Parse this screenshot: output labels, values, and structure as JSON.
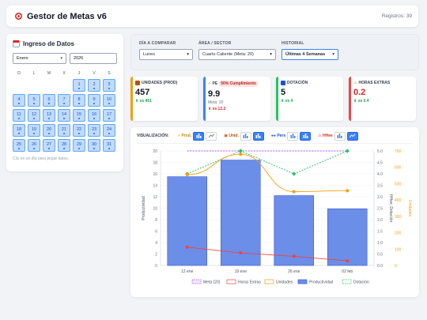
{
  "header": {
    "title": "Gestor de Metas v6",
    "registros": "Registros: 39"
  },
  "left": {
    "title": "Ingreso de Datos",
    "month": "Enero",
    "year": "2026",
    "dow": [
      "D",
      "L",
      "M",
      "X",
      "J",
      "V",
      "S"
    ],
    "leading_blanks": 4,
    "days": [
      1,
      2,
      3,
      4,
      5,
      6,
      7,
      8,
      9,
      10,
      11,
      12,
      13,
      14,
      15,
      16,
      17,
      18,
      19,
      20,
      21,
      22,
      23,
      24,
      25,
      26,
      27,
      28,
      29,
      30,
      31
    ],
    "hint": "Clic en un día para pegar datos."
  },
  "filters": {
    "dia": {
      "label": "DÍA A COMPARAR",
      "value": "Lunes"
    },
    "area": {
      "label": "ÁREA / SECTOR",
      "value": "Cuarto Caliente (Meta: 20)"
    },
    "historial": {
      "label": "HISTORIAL",
      "value": "Últimas 4 Semanas"
    }
  },
  "kpis": {
    "unidades": {
      "label": "UNIDADES (PROD)",
      "value": "457",
      "delta": "vs 451",
      "color": "#f59e0b"
    },
    "pe": {
      "label": "PE",
      "badge": "50% Cumplimiento",
      "value": "9.9",
      "sub": "Meta: 20",
      "delta": "vs 12.2",
      "color": "#3b82f6"
    },
    "dotacion": {
      "label": "DOTACIÓN",
      "value": "5",
      "delta": "vs 4",
      "color": "#22c55e"
    },
    "horas": {
      "label": "HORAS EXTRAS",
      "value": "0.2",
      "delta": "vs 0.4",
      "color": "#ef4444"
    }
  },
  "vis": {
    "label": "VISUALIZACIÓN:",
    "groups": [
      {
        "name": "Prod.",
        "color": "#ca8a04",
        "icon": "bolt-icon"
      },
      {
        "name": "Unid.",
        "color": "#b45309",
        "icon": "box-icon"
      },
      {
        "name": "Pers",
        "color": "#1d4ed8",
        "icon": "people-icon"
      },
      {
        "name": "HHee",
        "color": "#dc2626",
        "icon": "warning-icon"
      }
    ]
  },
  "chart_data": {
    "type": "bar",
    "categories": [
      "12 ene",
      "19 ene",
      "26 ene",
      "02 feb"
    ],
    "ylabel": "Productividad",
    "y2label": "HHee, Dotación",
    "y3label": "Unidades",
    "ylim": [
      0,
      20
    ],
    "y2lim": [
      0,
      5
    ],
    "y3lim": [
      0,
      700
    ],
    "yticks": [
      0,
      2,
      4,
      6,
      8,
      10,
      12,
      14,
      16,
      18,
      20
    ],
    "y2ticks": [
      "0.0",
      "0.5",
      "1.0",
      "1.5",
      "2.0",
      "2.5",
      "3.0",
      "3.5",
      "4.0",
      "4.5",
      "5.0"
    ],
    "y3ticks": [
      0,
      100,
      200,
      300,
      400,
      500,
      600,
      700
    ],
    "series": [
      {
        "name": "Productividad",
        "type": "bar",
        "axis": "y",
        "values": [
          15.5,
          18.4,
          12.2,
          9.9
        ],
        "color": "#6b8ee8"
      },
      {
        "name": "Meta (20)",
        "type": "line",
        "axis": "y",
        "values": [
          20,
          20,
          20,
          20
        ],
        "color": "#a855f7"
      },
      {
        "name": "Horas Extras",
        "type": "line",
        "axis": "y2",
        "values": [
          0.8,
          0.55,
          0.4,
          0.2
        ],
        "color": "#ef4444"
      },
      {
        "name": "Unidades",
        "type": "line",
        "axis": "y3",
        "values": [
          555,
          680,
          451,
          457
        ],
        "color": "#f59e0b"
      },
      {
        "name": "Dotación",
        "type": "line",
        "axis": "y2",
        "values": [
          4,
          5,
          4,
          5
        ],
        "color": "#22c55e"
      }
    ],
    "legend": [
      "Meta (20)",
      "Horas Extras",
      "Unidades",
      "Productividad",
      "Dotación"
    ]
  }
}
